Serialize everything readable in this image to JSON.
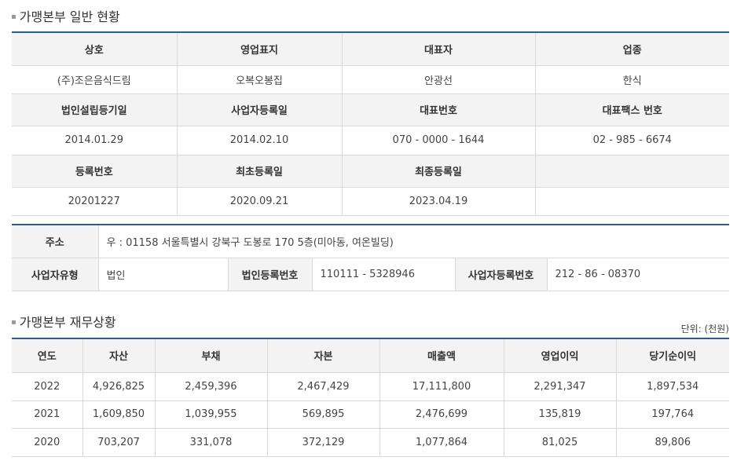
{
  "general": {
    "title": "가맹본부 일반 현황",
    "rows": [
      [
        "상호",
        "영업표지",
        "대표자",
        "업종"
      ],
      [
        "(주)조은음식드림",
        "오복오봉집",
        "안광선",
        "한식"
      ],
      [
        "법인설립등기일",
        "사업자등록일",
        "대표번호",
        "대표팩스 번호"
      ],
      [
        "2014.01.29",
        "2014.02.10",
        "070 - 0000 - 1644",
        "02 - 985 - 6674"
      ],
      [
        "등록번호",
        "최초등록일",
        "최종등록일",
        ""
      ],
      [
        "20201227",
        "2020.09.21",
        "2023.04.19",
        ""
      ]
    ]
  },
  "address": {
    "label": "주소",
    "value": "우 : 01158 서울특별시 강북구 도봉로 170 5층(미아동, 여온빌딩)",
    "biz_type_label": "사업자유형",
    "biz_type_value": "법인",
    "corp_no_label": "법인등록번호",
    "corp_no_value": "110111 - 5328946",
    "biz_no_label": "사업자등록번호",
    "biz_no_value": "212 - 86 - 08370"
  },
  "finance": {
    "title": "가맹본부 재무상황",
    "unit": "단위: (천원)",
    "headers": [
      "연도",
      "자산",
      "부채",
      "자본",
      "매출액",
      "영업이익",
      "당기순이익"
    ],
    "rows": [
      [
        "2022",
        "4,926,825",
        "2,459,396",
        "2,467,429",
        "17,111,800",
        "2,291,347",
        "1,897,534"
      ],
      [
        "2021",
        "1,609,850",
        "1,039,955",
        "569,895",
        "2,476,699",
        "135,819",
        "197,764"
      ],
      [
        "2020",
        "703,207",
        "331,078",
        "372,129",
        "1,077,864",
        "81,025",
        "89,806"
      ]
    ]
  }
}
